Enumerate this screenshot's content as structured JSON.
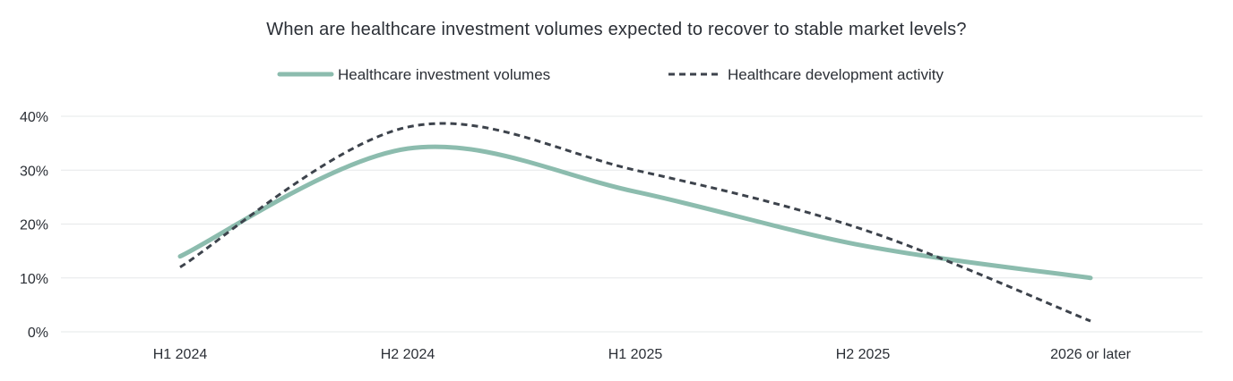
{
  "chart_data": {
    "type": "line",
    "title": "When are healthcare investment volumes expected to recover to stable market levels?",
    "categories": [
      "H1 2024",
      "H2 2024",
      "H1 2025",
      "H2 2025",
      "2026 or later"
    ],
    "series": [
      {
        "name": "Healthcare investment volumes",
        "values": [
          14,
          34,
          26,
          16,
          10
        ],
        "color": "#8cbcae",
        "style": "solid"
      },
      {
        "name": "Healthcare development activity",
        "values": [
          12,
          38,
          30,
          19,
          2
        ],
        "color": "#3d434c",
        "style": "dashed"
      }
    ],
    "y_ticks": [
      "0%",
      "10%",
      "20%",
      "30%",
      "40%"
    ],
    "ylim": [
      0,
      40
    ],
    "xlabel": "",
    "ylabel": "",
    "grid": true,
    "legend_position": "top-center"
  }
}
